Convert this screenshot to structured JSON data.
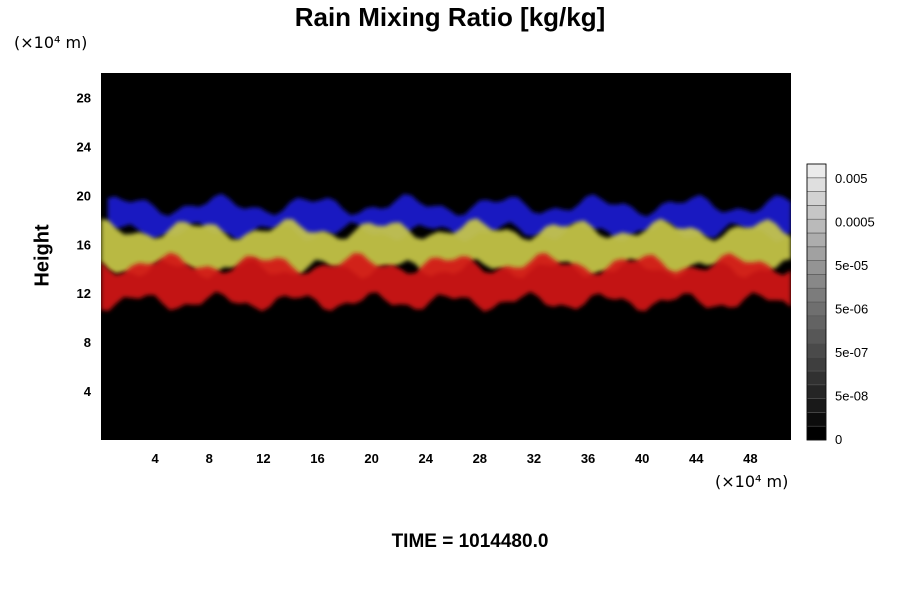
{
  "chart_data": {
    "type": "heatmap",
    "title": "Rain Mixing Ratio [kg/kg]",
    "xlabel": "",
    "ylabel": "Height",
    "x_unit": "(×10⁴ m)",
    "y_unit": "(×10⁴ m)",
    "xlim": [
      0,
      51
    ],
    "ylim": [
      0,
      30
    ],
    "xticks": [
      "4",
      "8",
      "12",
      "16",
      "20",
      "24",
      "28",
      "32",
      "36",
      "40",
      "44",
      "48"
    ],
    "yticks": [
      "4",
      "8",
      "12",
      "16",
      "20",
      "24",
      "28"
    ],
    "colorbar": {
      "labels": [
        "0",
        "5e-08",
        "5e-07",
        "5e-06",
        "5e-05",
        "0.0005",
        "0.005"
      ],
      "segments": 20
    },
    "layers": [
      {
        "color": "#1a1ad2",
        "bottom": 17.0,
        "top": 19.2,
        "x_start": 0.5,
        "x_end": 51
      },
      {
        "color": "#c9c94a",
        "bottom": 14.0,
        "top": 17.2,
        "x_start": 0,
        "x_end": 51
      },
      {
        "color": "#d41414",
        "bottom": 11.3,
        "top": 14.4,
        "x_start": 0,
        "x_end": 51
      }
    ],
    "annotation": "TIME = 1014480.0"
  }
}
